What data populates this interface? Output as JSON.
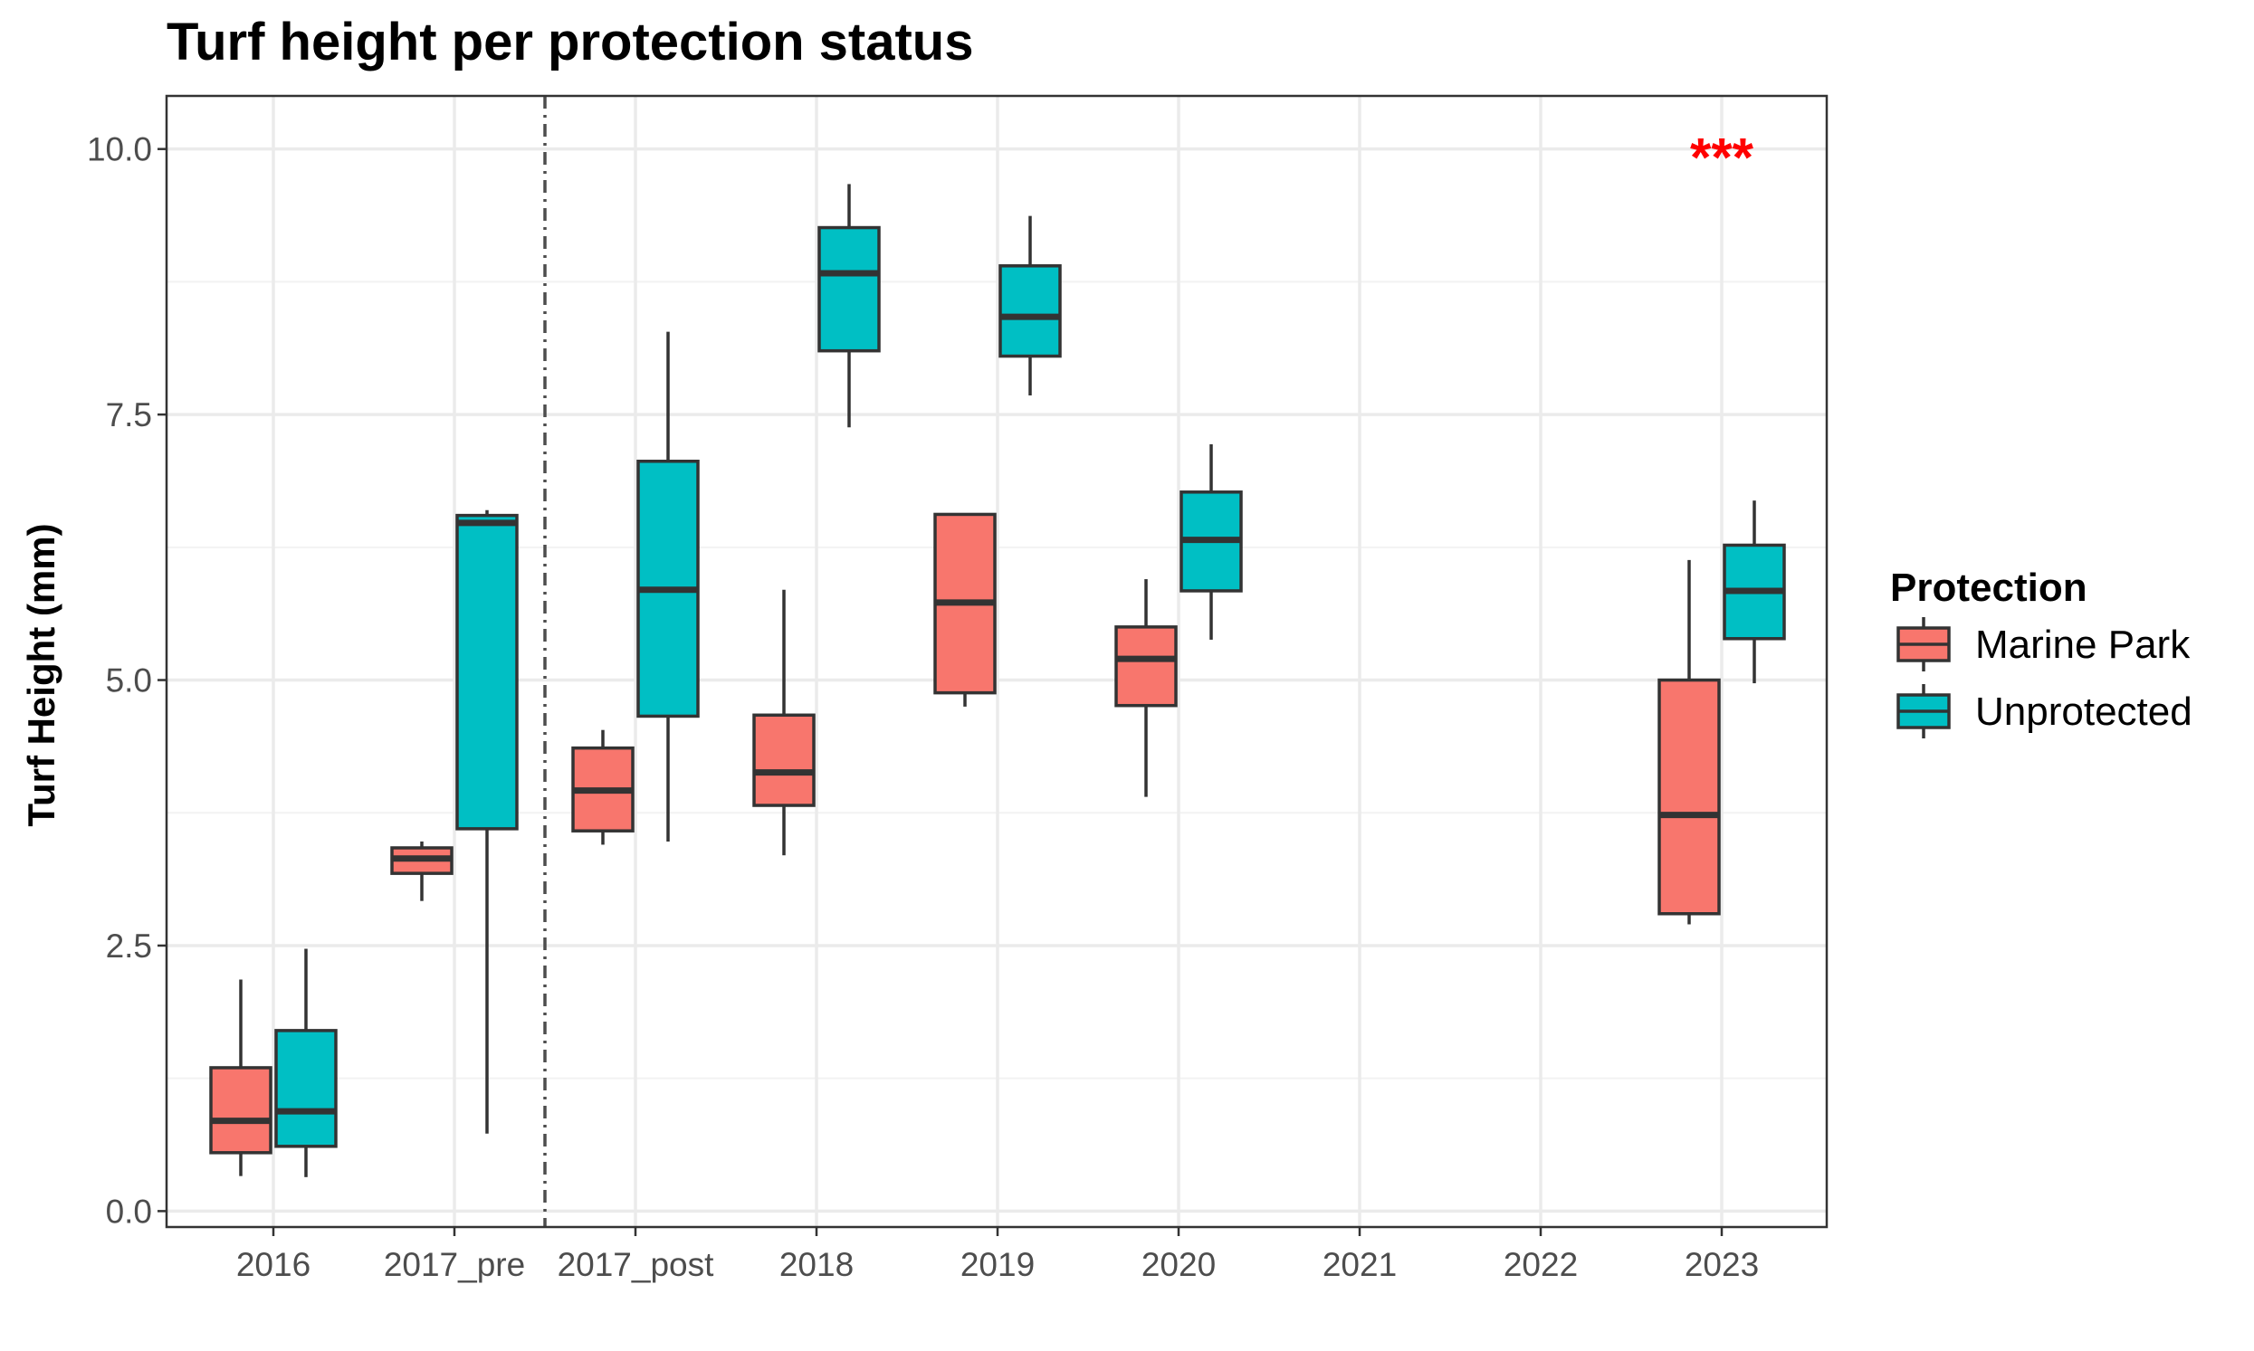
{
  "chart_data": {
    "type": "boxplot",
    "title": "Turf height per protection status",
    "xlabel": "",
    "ylabel": "Turf Height (mm)",
    "ylim": [
      -0.15,
      10.5
    ],
    "yticks": [
      0.0,
      2.5,
      5.0,
      7.5,
      10.0
    ],
    "ytick_labels": [
      "0.0",
      "2.5",
      "5.0",
      "7.5",
      "10.0"
    ],
    "categories": [
      "2016",
      "2017_pre",
      "2017_post",
      "2018",
      "2019",
      "2020",
      "2021",
      "2022",
      "2023"
    ],
    "grid": true,
    "legend": {
      "title": "Protection",
      "placement": "right"
    },
    "separator_after_category": "2017_pre",
    "series": [
      {
        "name": "Marine Park",
        "color": "#F8766D",
        "boxes": [
          {
            "category": "2016",
            "min": 0.33,
            "q1": 0.55,
            "median": 0.85,
            "q3": 1.35,
            "max": 2.18
          },
          {
            "category": "2017_pre",
            "min": 2.92,
            "q1": 3.18,
            "median": 3.32,
            "q3": 3.42,
            "max": 3.48
          },
          {
            "category": "2017_post",
            "min": 3.45,
            "q1": 3.58,
            "median": 3.96,
            "q3": 4.36,
            "max": 4.53
          },
          {
            "category": "2018",
            "min": 3.35,
            "q1": 3.82,
            "median": 4.13,
            "q3": 4.67,
            "max": 5.85
          },
          {
            "category": "2019",
            "min": 4.75,
            "q1": 4.88,
            "median": 5.73,
            "q3": 6.56,
            "max": 6.56
          },
          {
            "category": "2020",
            "min": 3.9,
            "q1": 4.76,
            "median": 5.2,
            "q3": 5.5,
            "max": 5.95
          },
          {
            "category": "2023",
            "min": 2.7,
            "q1": 2.8,
            "median": 3.73,
            "q3": 5.0,
            "max": 6.13
          }
        ]
      },
      {
        "name": "Unprotected",
        "color": "#00BFC4",
        "boxes": [
          {
            "category": "2016",
            "min": 0.32,
            "q1": 0.61,
            "median": 0.94,
            "q3": 1.7,
            "max": 2.47
          },
          {
            "category": "2017_pre",
            "min": 0.73,
            "q1": 3.6,
            "median": 6.48,
            "q3": 6.55,
            "max": 6.6
          },
          {
            "category": "2017_post",
            "min": 3.48,
            "q1": 4.66,
            "median": 5.85,
            "q3": 7.06,
            "max": 8.28
          },
          {
            "category": "2018",
            "min": 7.38,
            "q1": 8.1,
            "median": 8.83,
            "q3": 9.26,
            "max": 9.67
          },
          {
            "category": "2019",
            "min": 7.68,
            "q1": 8.05,
            "median": 8.42,
            "q3": 8.9,
            "max": 9.37
          },
          {
            "category": "2020",
            "min": 5.38,
            "q1": 5.84,
            "median": 6.32,
            "q3": 6.77,
            "max": 7.22
          },
          {
            "category": "2023",
            "min": 4.97,
            "q1": 5.39,
            "median": 5.84,
            "q3": 6.27,
            "max": 6.69
          }
        ]
      }
    ],
    "annotations": [
      {
        "text": "***",
        "category": "2023",
        "y": 10.0,
        "color": "#ff0000"
      }
    ]
  }
}
